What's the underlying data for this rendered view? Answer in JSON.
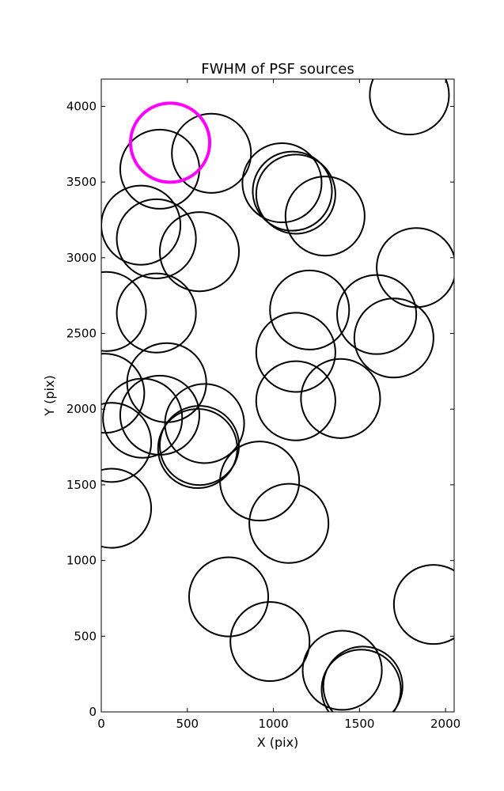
{
  "chart_data": {
    "type": "scatter",
    "title": "FWHM of PSF sources",
    "xlabel": "X (pix)",
    "ylabel": "Y (pix)",
    "xlim": [
      0,
      2050
    ],
    "ylim": [
      0,
      4180
    ],
    "xticks": [
      0,
      500,
      1000,
      1500,
      2000
    ],
    "yticks": [
      0,
      500,
      1000,
      1500,
      2000,
      2500,
      3000,
      3500,
      4000
    ],
    "grid": false,
    "marker": "circle outline",
    "marker_radius": 230,
    "colors": {
      "default": "#000000",
      "highlight": "#ff00ff"
    },
    "sources": [
      {
        "x": 1790,
        "y": 4075
      },
      {
        "x": 640,
        "y": 3690
      },
      {
        "x": 340,
        "y": 3585
      },
      {
        "x": 1050,
        "y": 3495
      },
      {
        "x": 1110,
        "y": 3440
      },
      {
        "x": 1130,
        "y": 3420
      },
      {
        "x": 1300,
        "y": 3275
      },
      {
        "x": 230,
        "y": 3215
      },
      {
        "x": 320,
        "y": 3125
      },
      {
        "x": 570,
        "y": 3040
      },
      {
        "x": 1830,
        "y": 2935
      },
      {
        "x": 30,
        "y": 2645
      },
      {
        "x": 1210,
        "y": 2655
      },
      {
        "x": 1600,
        "y": 2625
      },
      {
        "x": 1700,
        "y": 2470
      },
      {
        "x": 320,
        "y": 2635
      },
      {
        "x": 1130,
        "y": 2375
      },
      {
        "x": 380,
        "y": 2175
      },
      {
        "x": 20,
        "y": 2105
      },
      {
        "x": 1130,
        "y": 2055
      },
      {
        "x": 1390,
        "y": 2070
      },
      {
        "x": 340,
        "y": 1960
      },
      {
        "x": 240,
        "y": 1940
      },
      {
        "x": 600,
        "y": 1905
      },
      {
        "x": 60,
        "y": 1780
      },
      {
        "x": 570,
        "y": 1760
      },
      {
        "x": 560,
        "y": 1740
      },
      {
        "x": 920,
        "y": 1525
      },
      {
        "x": 60,
        "y": 1345
      },
      {
        "x": 1090,
        "y": 1245
      },
      {
        "x": 740,
        "y": 760
      },
      {
        "x": 1930,
        "y": 710
      },
      {
        "x": 980,
        "y": 465
      },
      {
        "x": 1400,
        "y": 275
      },
      {
        "x": 1520,
        "y": 170
      },
      {
        "x": 1510,
        "y": 150
      },
      {
        "x": 400,
        "y": 3760,
        "highlight": true
      }
    ]
  }
}
